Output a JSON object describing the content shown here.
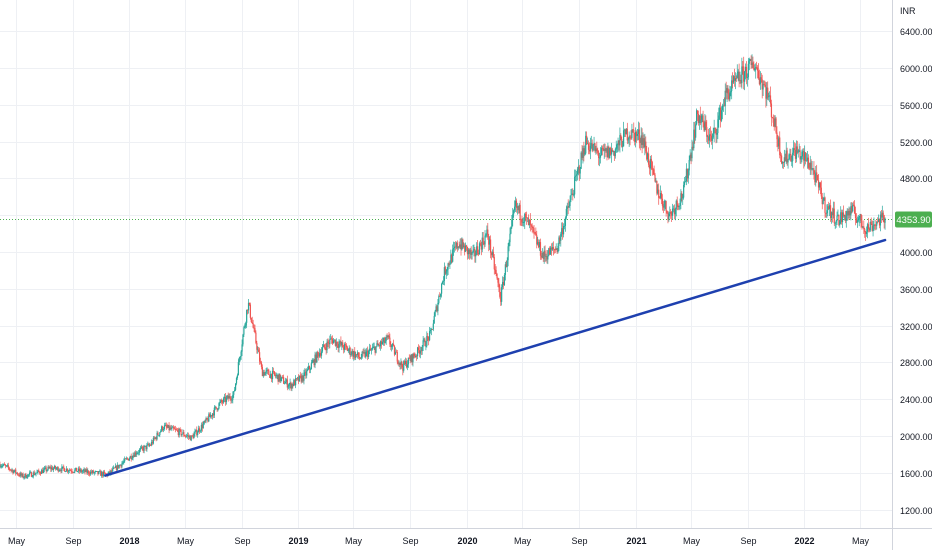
{
  "chart_data": {
    "type": "candlestick",
    "currency_label": "INR",
    "last_price": "4353.90",
    "x_tick_labels": [
      "May",
      "Sep",
      "2018",
      "May",
      "Sep",
      "2019",
      "May",
      "Sep",
      "2020",
      "May",
      "Sep",
      "2021",
      "May",
      "Sep",
      "2022",
      "May"
    ],
    "x_tick_months": [
      "2017-05",
      "2017-09",
      "2018-01",
      "2018-05",
      "2018-09",
      "2019-01",
      "2019-05",
      "2019-09",
      "2020-01",
      "2020-05",
      "2020-09",
      "2021-01",
      "2021-05",
      "2021-09",
      "2022-01",
      "2022-05"
    ],
    "y_tick_labels": [
      "1200.00",
      "1600.00",
      "2000.00",
      "2400.00",
      "2800.00",
      "3200.00",
      "3600.00",
      "4000.00",
      "4400.00",
      "4800.00",
      "5200.00",
      "5600.00",
      "6000.00",
      "6400.00"
    ],
    "y_ticks": [
      1200,
      1600,
      2000,
      2400,
      2800,
      3200,
      3600,
      4000,
      4400,
      4800,
      5200,
      5600,
      6000,
      6400
    ],
    "ylim": [
      1000,
      6740
    ],
    "xlim": [
      "2017-03-27",
      "2022-07-10"
    ],
    "grid": true,
    "colors": {
      "up": "#26a69a",
      "down": "#ef5350",
      "trendline": "#1e40af",
      "price_label_bg": "#4caf50"
    },
    "trendline": {
      "x": [
        "2017-11-10",
        "2022-06-25"
      ],
      "y": [
        1570,
        4130
      ]
    },
    "series": [
      {
        "monthly_closes": [
          {
            "x": "2017-03",
            "y": 1720
          },
          {
            "x": "2017-04",
            "y": 1650
          },
          {
            "x": "2017-05",
            "y": 1560
          },
          {
            "x": "2017-06",
            "y": 1600
          },
          {
            "x": "2017-07",
            "y": 1650
          },
          {
            "x": "2017-08",
            "y": 1640
          },
          {
            "x": "2017-09",
            "y": 1620
          },
          {
            "x": "2017-10",
            "y": 1600
          },
          {
            "x": "2017-11",
            "y": 1580
          },
          {
            "x": "2017-12",
            "y": 1700
          },
          {
            "x": "2018-01",
            "y": 1820
          },
          {
            "x": "2018-02",
            "y": 1900
          },
          {
            "x": "2018-03",
            "y": 2100
          },
          {
            "x": "2018-04",
            "y": 2050
          },
          {
            "x": "2018-05",
            "y": 1980
          },
          {
            "x": "2018-06",
            "y": 2150
          },
          {
            "x": "2018-07",
            "y": 2350
          },
          {
            "x": "2018-08",
            "y": 2450
          },
          {
            "x": "2018-09",
            "y": 3450
          },
          {
            "x": "2018-10",
            "y": 2700
          },
          {
            "x": "2018-11",
            "y": 2650
          },
          {
            "x": "2018-12",
            "y": 2550
          },
          {
            "x": "2019-01",
            "y": 2650
          },
          {
            "x": "2019-02",
            "y": 2900
          },
          {
            "x": "2019-03",
            "y": 3050
          },
          {
            "x": "2019-04",
            "y": 2950
          },
          {
            "x": "2019-05",
            "y": 2850
          },
          {
            "x": "2019-06",
            "y": 2950
          },
          {
            "x": "2019-07",
            "y": 3050
          },
          {
            "x": "2019-08",
            "y": 2750
          },
          {
            "x": "2019-09",
            "y": 2900
          },
          {
            "x": "2019-10",
            "y": 3100
          },
          {
            "x": "2019-11",
            "y": 3800
          },
          {
            "x": "2019-12",
            "y": 4100
          },
          {
            "x": "2020-01",
            "y": 3950
          },
          {
            "x": "2020-02",
            "y": 4200
          },
          {
            "x": "2020-03",
            "y": 3500
          },
          {
            "x": "2020-04",
            "y": 4500
          },
          {
            "x": "2020-05",
            "y": 4300
          },
          {
            "x": "2020-06",
            "y": 3950
          },
          {
            "x": "2020-07",
            "y": 4050
          },
          {
            "x": "2020-08",
            "y": 4600
          },
          {
            "x": "2020-09",
            "y": 5200
          },
          {
            "x": "2020-10",
            "y": 5050
          },
          {
            "x": "2020-11",
            "y": 5100
          },
          {
            "x": "2020-12",
            "y": 5300
          },
          {
            "x": "2021-01",
            "y": 5250
          },
          {
            "x": "2021-02",
            "y": 4700
          },
          {
            "x": "2021-03",
            "y": 4400
          },
          {
            "x": "2021-04",
            "y": 4650
          },
          {
            "x": "2021-05",
            "y": 5500
          },
          {
            "x": "2021-06",
            "y": 5200
          },
          {
            "x": "2021-07",
            "y": 5700
          },
          {
            "x": "2021-08",
            "y": 5900
          },
          {
            "x": "2021-09",
            "y": 6050
          },
          {
            "x": "2021-10",
            "y": 5700
          },
          {
            "x": "2021-11",
            "y": 5000
          },
          {
            "x": "2021-12",
            "y": 5100
          },
          {
            "x": "2022-01",
            "y": 4950
          },
          {
            "x": "2022-02",
            "y": 4500
          },
          {
            "x": "2022-03",
            "y": 4350
          },
          {
            "x": "2022-04",
            "y": 4450
          },
          {
            "x": "2022-05",
            "y": 4250
          },
          {
            "x": "2022-06",
            "y": 4354
          }
        ]
      }
    ]
  }
}
